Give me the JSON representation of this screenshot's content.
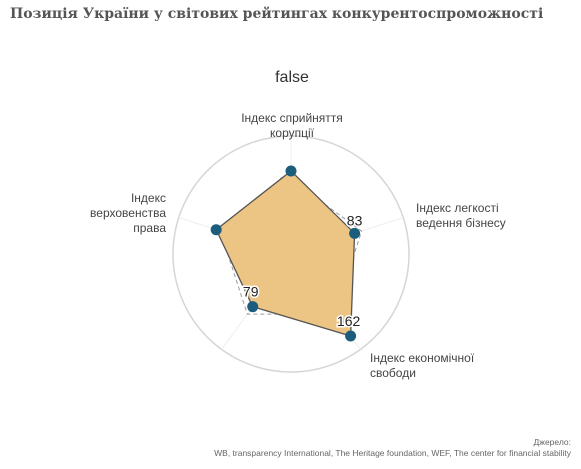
{
  "page": {
    "title": "Позиція України у світових рейтингах конкурентоспроможності"
  },
  "chart_data": {
    "type": "radar",
    "title": "false",
    "axes": [
      {
        "label_lines": [
          "Індекс сприйняття",
          "корупції"
        ],
        "value": 120,
        "value_label": ""
      },
      {
        "label_lines": [
          "Індекс легкості",
          "ведення бізнесу"
        ],
        "value": 83,
        "value_label": "83"
      },
      {
        "label_lines": [
          "Індекс економічної",
          "свободи"
        ],
        "value": 162,
        "value_label": "162"
      },
      {
        "label_lines": [
          "",
          ""
        ],
        "value": 79,
        "value_label": "79"
      },
      {
        "label_lines": [
          "Індекс",
          "верховенства",
          "права"
        ],
        "value": 110,
        "value_label": ""
      }
    ],
    "rlim": [
      -70,
      200
    ],
    "ring_ticks": [
      0,
      100
    ],
    "grid": true,
    "fill_color": "#ecc484",
    "stroke_color": "#555555",
    "marker_color": "#1c5c7c"
  },
  "source": {
    "label": "Джерело:",
    "text": "WB, transparency International, The Heritage foundation, WEF, The center for financial stability"
  }
}
